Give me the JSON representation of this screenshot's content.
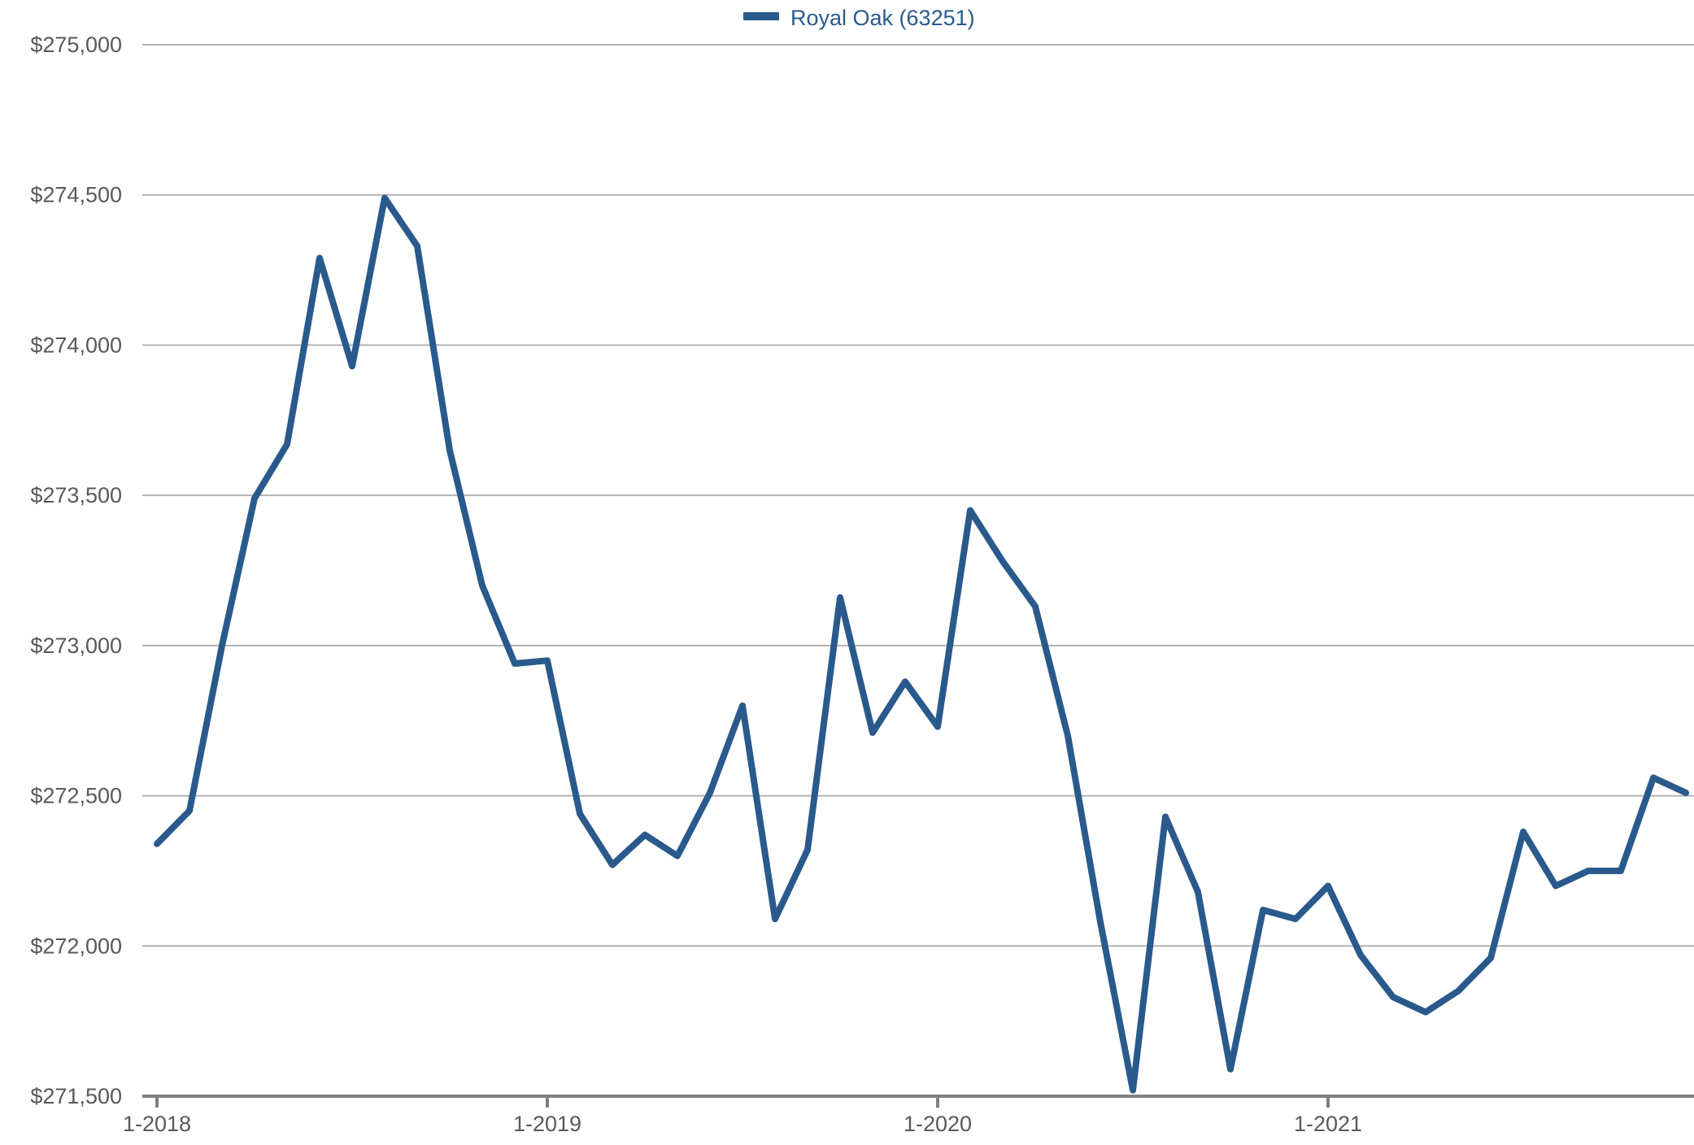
{
  "legend": {
    "label": "Royal Oak (63251)"
  },
  "colors": {
    "series": "#2a5a8c",
    "grid": "#b3b3b3",
    "axis": "#808080",
    "tick_text": "#595959"
  },
  "chart_data": {
    "type": "line",
    "title": "",
    "xlabel": "",
    "ylabel": "",
    "ylim": [
      271500,
      275000
    ],
    "yticks": [
      271500,
      272000,
      272500,
      273000,
      273500,
      274000,
      274500,
      275000
    ],
    "ytick_labels": [
      "$271,500",
      "$272,000",
      "$272,500",
      "$273,000",
      "$273,500",
      "$274,000",
      "$274,500",
      "$275,000"
    ],
    "xticks": [
      "2018-01",
      "2019-01",
      "2020-01",
      "2021-01"
    ],
    "xtick_labels": [
      "1-2018",
      "1-2019",
      "1-2020",
      "1-2021"
    ],
    "grid": true,
    "legend_position": "top-center",
    "x": [
      "2018-01",
      "2018-02",
      "2018-03",
      "2018-04",
      "2018-05",
      "2018-06",
      "2018-07",
      "2018-08",
      "2018-09",
      "2018-10",
      "2018-11",
      "2018-12",
      "2019-01",
      "2019-02",
      "2019-03",
      "2019-04",
      "2019-05",
      "2019-06",
      "2019-07",
      "2019-08",
      "2019-09",
      "2019-10",
      "2019-11",
      "2019-12",
      "2020-01",
      "2020-02",
      "2020-03",
      "2020-04",
      "2020-05",
      "2020-06",
      "2020-07",
      "2020-08",
      "2020-09",
      "2020-10",
      "2020-11",
      "2020-12",
      "2021-01",
      "2021-02",
      "2021-03",
      "2021-04",
      "2021-05",
      "2021-06",
      "2021-07",
      "2021-08",
      "2021-09",
      "2021-10",
      "2021-11",
      "2021-12"
    ],
    "series": [
      {
        "name": "Royal Oak (63251)",
        "values": [
          272340,
          272450,
          273000,
          273490,
          273670,
          274290,
          273930,
          274490,
          274330,
          273650,
          273200,
          272940,
          272950,
          272440,
          272270,
          272370,
          272300,
          272510,
          272800,
          272090,
          272320,
          273160,
          272710,
          272880,
          272730,
          273450,
          273280,
          273130,
          272700,
          272080,
          271520,
          272430,
          272180,
          271590,
          272120,
          272090,
          272200,
          271970,
          271830,
          271780,
          271850,
          271960,
          272380,
          272200,
          272250,
          272250,
          272560,
          272510
        ]
      }
    ]
  }
}
